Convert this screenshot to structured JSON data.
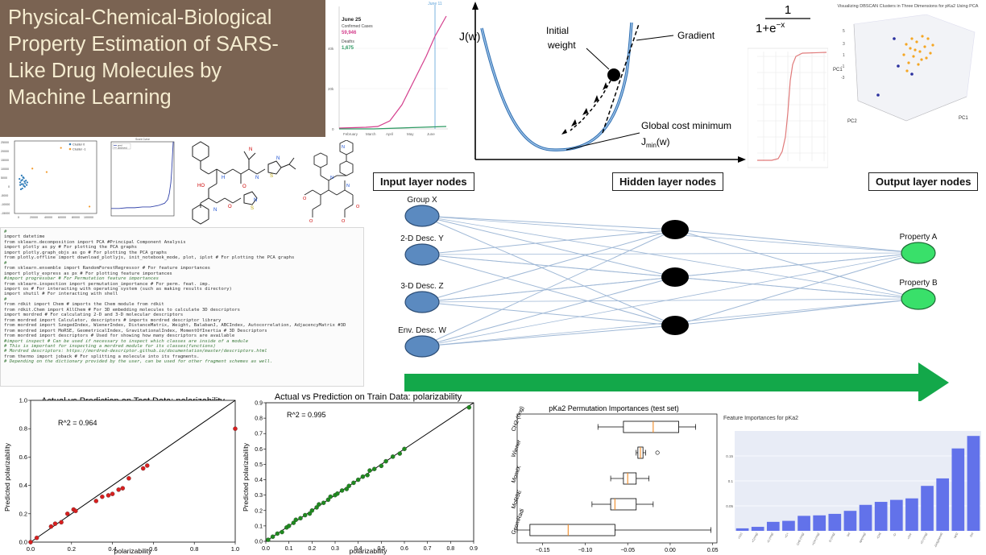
{
  "title": {
    "lines": [
      "Physical-Chemical-Biological",
      "Property Estimation of SARS-",
      "Like Drug Molecules by",
      "Machine Learning"
    ]
  },
  "covid_chart": {
    "marker": "June 11",
    "date": "June 25",
    "confirmed_label": "Confirmed Cases",
    "confirmed_value": "59,946",
    "deaths_label": "Deaths",
    "deaths_value": "1,675",
    "yticks": [
      "60k",
      "40k",
      "20k",
      "0"
    ],
    "xticks": [
      "February",
      "March",
      "April",
      "May",
      "June"
    ],
    "colors": {
      "confirmed": "#d43f8d",
      "deaths": "#2e9a63"
    }
  },
  "gradient": {
    "ylabel": "J(w)",
    "initial_weight": [
      "Initial",
      "weight"
    ],
    "gradient_label": "Gradient",
    "global_min": "Global cost minimum",
    "jmin_main": "J",
    "jmin_sub": "min",
    "jmin_tail": "(w)"
  },
  "sigmoid": {
    "numerator": "1",
    "denominator": "1+e",
    "exponent": "−x"
  },
  "pca3d": {
    "title": "Visualizing DBSCAN Clusters in Three Dimensions for pKa2 Using PCA",
    "labels": {
      "pc1": "PC1",
      "pc2": "PC2",
      "pc3": "PC1"
    }
  },
  "scatter_small": {
    "legend": [
      "Cluster 0",
      "Cluster -1"
    ],
    "yticks": [
      "25000",
      "20000",
      "15000",
      "10000",
      "5000",
      "0",
      "-5000",
      "-10000",
      "-15000"
    ],
    "xticks": [
      "0",
      "20000",
      "40000",
      "60000",
      "80000",
      "100000"
    ]
  },
  "network": {
    "input_label": "Input layer nodes",
    "hidden_label": "Hidden layer nodes",
    "output_label": "Output layer nodes",
    "inputs": [
      "Group X",
      "2-D Desc. Y",
      "3-D Desc. Z",
      "Env. Desc. W"
    ],
    "outputs": [
      "Property A",
      "Property B"
    ],
    "colors": {
      "input": "#5b8ac0",
      "hidden": "#000000",
      "output": "#39e06a",
      "arrow": "#13a84a",
      "edge": "#9fb8d6"
    }
  },
  "code": {
    "lines": [
      {
        "t": "#",
        "c": true
      },
      {
        "t": "import datetime",
        "c": false
      },
      {
        "t": "from sklearn.decomposition import PCA #Principal Component Analysis",
        "c": false
      },
      {
        "t": "import plotly as py # For plotting the PCA graphs",
        "c": false
      },
      {
        "t": "import plotly.graph_objs as go # For plotting the PCA graphs",
        "c": false
      },
      {
        "t": "from plotly.offline import download_plotlyjs, init_notebook_mode, plot, iplot # For plotting the PCA graphs",
        "c": false
      },
      {
        "t": "#",
        "c": true
      },
      {
        "t": "from sklearn.ensemble import RandomForestRegressor # For feature importances",
        "c": false
      },
      {
        "t": "import plotly_express as px # For plotting feature importances",
        "c": false
      },
      {
        "t": "#import progressbar # For Permutation feature importances",
        "c": true
      },
      {
        "t": "from sklearn.inspection import permutation_importance # For perm. feat. imp.",
        "c": false
      },
      {
        "t": "import os # For interacting with operating system (such as making results directory)",
        "c": false
      },
      {
        "t": "import shutil # For interacting with shell",
        "c": false
      },
      {
        "t": "#",
        "c": true
      },
      {
        "t": "from rdkit import Chem # imports the Chem module from rdkit",
        "c": false
      },
      {
        "t": "from rdkit.Chem import AllChem # For 3D embedding molecules to calculate 3D descriptors",
        "c": false
      },
      {
        "t": "import mordred # For calculating 2-D and 3-D molecular descriptors",
        "c": false
      },
      {
        "t": "from mordred import Calculator, descriptors # imports mordred descriptor library",
        "c": false
      },
      {
        "t": "from mordred import SzegedIndex, WienerIndex, DistanceMatrix, Weight, BalabanJ, ABCIndex, Autocorrelation, AdjacencyMatrix #3D",
        "c": false
      },
      {
        "t": "from mordred import MoRSE, GeometricalIndex, GravitationalIndex, MomentOfInertia # 3D Descriptors",
        "c": false
      },
      {
        "t": "from mordred import descriptors # Used for showing how many descriptors are available",
        "c": false
      },
      {
        "t": "#import inspect # Can be used if necessary to inspect which classes are inside of a module",
        "c": true
      },
      {
        "t": "# This is important for inspecting a mordred module for its classes(functions)",
        "c": true
      },
      {
        "t": "# Mordred descriptors: https://mordred-descriptor.github.io/documentation/master/descriptors.html",
        "c": true
      },
      {
        "t": "from thermo import joback # For splitting a molecule into its fragments.",
        "c": false
      },
      {
        "t": "# Depending on the dictionary provided by the user, can be used for other fragment schemes as well.",
        "c": true
      }
    ]
  },
  "test_plot": {
    "title": "Actual vs Prediction on Test Data: polarizability",
    "r2": "R^2 = 0.964",
    "xlabel": "polarizability",
    "ylabel": "Predicted polarizability",
    "ticks": [
      "0.0",
      "0.2",
      "0.4",
      "0.6",
      "0.8",
      "1.0"
    ]
  },
  "train_plot": {
    "title": "Actual vs Prediction on Train Data: polarizability",
    "r2": "R^2 = 0.995",
    "xlabel": "polarizability",
    "ylabel": "Predicted polarizability",
    "xticks": [
      "0.0",
      "0.1",
      "0.2",
      "0.3",
      "0.4",
      "0.5",
      "0.6",
      "0.7",
      "0.8",
      "0.9"
    ],
    "yticks": [
      "0.0",
      "0.1",
      "0.2",
      "0.3",
      "0.4",
      "0.5",
      "0.6",
      "0.7",
      "0.8",
      "0.9"
    ]
  },
  "perm_plot": {
    "title": "pKa2 Permutation Importances (test set)",
    "categories": [
      "CH2-(ring)",
      "Wiener",
      "MomIX",
      "MoRSE",
      "GeomRadi"
    ],
    "xticks": [
      "−0.15",
      "−0.10",
      "−0.05",
      "0.00",
      "0.05"
    ]
  },
  "chart_data": [
    {
      "type": "scatter",
      "title": "Actual vs Prediction on Test Data: polarizability",
      "xlabel": "polarizability",
      "ylabel": "Predicted polarizability",
      "xlim": [
        0,
        1
      ],
      "ylim": [
        0,
        1
      ],
      "annotation": "R^2 = 0.964",
      "points": [
        [
          0.0,
          0.0
        ],
        [
          0.03,
          0.03
        ],
        [
          0.1,
          0.11
        ],
        [
          0.12,
          0.13
        ],
        [
          0.15,
          0.14
        ],
        [
          0.18,
          0.2
        ],
        [
          0.21,
          0.23
        ],
        [
          0.22,
          0.22
        ],
        [
          0.32,
          0.29
        ],
        [
          0.35,
          0.32
        ],
        [
          0.38,
          0.33
        ],
        [
          0.4,
          0.34
        ],
        [
          0.43,
          0.37
        ],
        [
          0.45,
          0.38
        ],
        [
          0.48,
          0.45
        ],
        [
          0.55,
          0.52
        ],
        [
          0.57,
          0.54
        ],
        [
          1.0,
          0.8
        ]
      ]
    },
    {
      "type": "scatter",
      "title": "Actual vs Prediction on Train Data: polarizability",
      "xlabel": "polarizability",
      "ylabel": "Predicted polarizability",
      "xlim": [
        0,
        0.9
      ],
      "ylim": [
        0,
        0.9
      ],
      "annotation": "R^2 = 0.995",
      "points": [
        [
          0.01,
          0.01
        ],
        [
          0.03,
          0.03
        ],
        [
          0.05,
          0.05
        ],
        [
          0.07,
          0.06
        ],
        [
          0.09,
          0.09
        ],
        [
          0.1,
          0.1
        ],
        [
          0.12,
          0.12
        ],
        [
          0.13,
          0.14
        ],
        [
          0.15,
          0.15
        ],
        [
          0.17,
          0.17
        ],
        [
          0.19,
          0.18
        ],
        [
          0.2,
          0.2
        ],
        [
          0.22,
          0.22
        ],
        [
          0.23,
          0.24
        ],
        [
          0.25,
          0.25
        ],
        [
          0.27,
          0.27
        ],
        [
          0.28,
          0.29
        ],
        [
          0.3,
          0.3
        ],
        [
          0.31,
          0.31
        ],
        [
          0.33,
          0.33
        ],
        [
          0.35,
          0.34
        ],
        [
          0.36,
          0.36
        ],
        [
          0.38,
          0.38
        ],
        [
          0.4,
          0.4
        ],
        [
          0.42,
          0.42
        ],
        [
          0.44,
          0.43
        ],
        [
          0.45,
          0.46
        ],
        [
          0.47,
          0.47
        ],
        [
          0.5,
          0.49
        ],
        [
          0.52,
          0.52
        ],
        [
          0.55,
          0.55
        ],
        [
          0.58,
          0.57
        ],
        [
          0.6,
          0.6
        ],
        [
          0.88,
          0.87
        ]
      ]
    },
    {
      "type": "box",
      "title": "pKa2 Permutation Importances (test set)",
      "orientation": "horizontal",
      "xlim": [
        -0.18,
        0.055
      ],
      "boxes": [
        {
          "name": "CH2-(ring)",
          "min": -0.085,
          "q1": -0.055,
          "median": -0.02,
          "q3": 0.01,
          "max": 0.03
        },
        {
          "name": "Wiener",
          "min": -0.04,
          "q1": -0.038,
          "median": -0.035,
          "q3": -0.032,
          "max": -0.029,
          "outliers": [
            -0.015
          ]
        },
        {
          "name": "MomIX",
          "min": -0.07,
          "q1": -0.055,
          "median": -0.05,
          "q3": -0.04,
          "max": -0.025
        },
        {
          "name": "MoRSE",
          "min": -0.092,
          "q1": -0.07,
          "median": -0.065,
          "q3": -0.04,
          "max": -0.02
        },
        {
          "name": "GeomRadi",
          "min": -0.18,
          "q1": -0.165,
          "median": -0.12,
          "q3": -0.065,
          "max": 0.048
        }
      ]
    },
    {
      "type": "bar",
      "title": "Feature Importances for pKa2",
      "ylim": [
        0,
        0.2
      ],
      "yticks": [
        "0.15",
        "0.1",
        "0.05"
      ],
      "color": "#6272ea",
      "values": [
        0.005,
        0.008,
        0.018,
        0.02,
        0.03,
        0.031,
        0.034,
        0.04,
        0.052,
        0.058,
        0.062,
        0.065,
        0.09,
        0.105,
        0.165,
        0.19
      ],
      "categories": [
        "+C(r)",
        "+C(ring)",
        "-O-(ring)",
        "=C<",
        "CH2-(ring)",
        "=CH-(ring)",
        "O-(ring)",
        "SH",
        "NH(ring)",
        "-CH3",
        "-O-",
        "=CH-",
        "=C<(ring)",
        "-OH(phenol)",
        "NH2",
        "OH"
      ]
    },
    {
      "type": "scatter",
      "legend": [
        "Cluster 0",
        "Cluster -1"
      ],
      "xlim": [
        -5000,
        110000
      ],
      "ylim": [
        -15000,
        27000
      ],
      "series": [
        {
          "name": "Cluster 0",
          "color": "#2e7bb8",
          "points": [
            [
              3000,
              3000
            ],
            [
              5000,
              2000
            ],
            [
              6000,
              4500
            ],
            [
              8000,
              1000
            ],
            [
              4000,
              -1000
            ],
            [
              9000,
              3500
            ],
            [
              7000,
              6000
            ],
            [
              10000,
              2500
            ],
            [
              2000,
              5000
            ],
            [
              11000,
              4000
            ],
            [
              5000,
              7000
            ],
            [
              12000,
              1500
            ],
            [
              6000,
              -500
            ],
            [
              8000,
              5500
            ],
            [
              13000,
              3000
            ],
            [
              3000,
              1500
            ],
            [
              7000,
              2000
            ],
            [
              9500,
              500
            ],
            [
              4500,
              4000
            ]
          ]
        },
        {
          "name": "Cluster -1",
          "color": "#f39a2a",
          "points": [
            [
              60000,
              23000
            ],
            [
              40000,
              9000
            ],
            [
              100000,
              -11000
            ],
            [
              20000,
              11000
            ]
          ]
        }
      ]
    },
    {
      "type": "line",
      "legend": [
        "pred",
        "observed"
      ],
      "ylim": [
        0,
        1
      ],
      "xlim": [
        0,
        80
      ],
      "points": [
        [
          0,
          0.1
        ],
        [
          10,
          0.1
        ],
        [
          20,
          0.11
        ],
        [
          30,
          0.11
        ],
        [
          40,
          0.12
        ],
        [
          50,
          0.12
        ],
        [
          60,
          0.14
        ],
        [
          68,
          0.17
        ],
        [
          72,
          0.22
        ],
        [
          74,
          0.3
        ],
        [
          76,
          0.45
        ],
        [
          77,
          0.6
        ],
        [
          78,
          0.8
        ],
        [
          79,
          1.0
        ]
      ]
    }
  ]
}
